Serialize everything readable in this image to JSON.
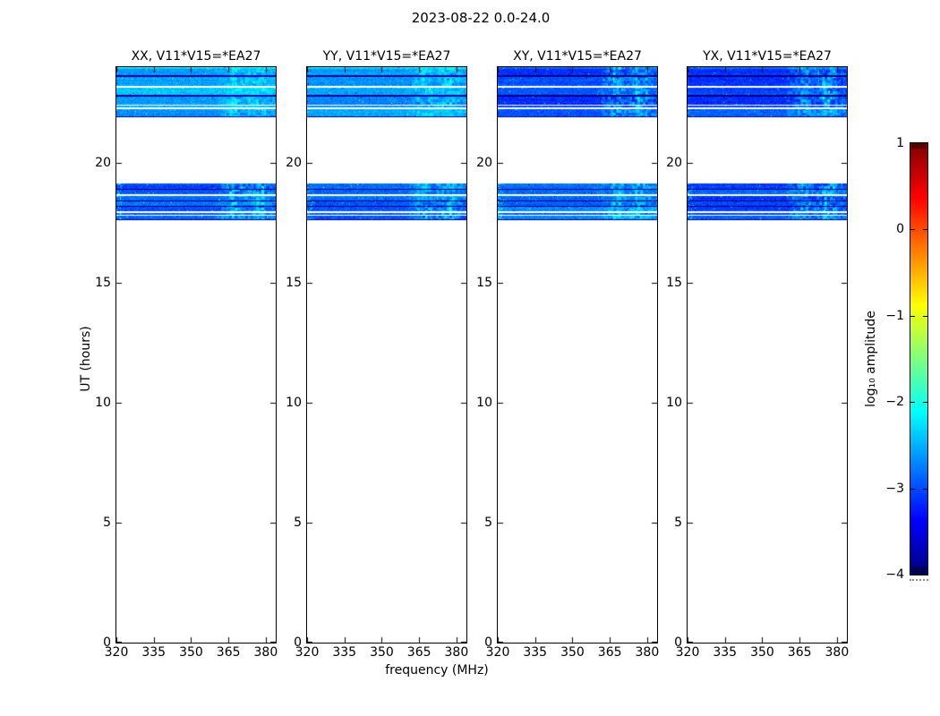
{
  "figure": {
    "title": "2023-08-22 0.0-24.0"
  },
  "axes": {
    "xlabel": "frequency (MHz)",
    "ylabel": "UT (hours)"
  },
  "chart_data": {
    "type": "heatmap",
    "title": "2023-08-22 0.0-24.0",
    "xlabel": "frequency (MHz)",
    "ylabel": "UT (hours)",
    "xlim": [
      320,
      384
    ],
    "ylim": [
      0,
      24
    ],
    "xticks": [
      320,
      335,
      350,
      365,
      380
    ],
    "yticks": [
      0,
      5,
      10,
      15,
      20
    ],
    "grid": false,
    "panels": [
      {
        "pol": "XX",
        "title": "XX, V11*V15=*EA27",
        "levels": [
          -2.55,
          -2.95
        ],
        "seed": 101
      },
      {
        "pol": "YY",
        "title": "YY, V11*V15=*EA27",
        "levels": [
          -2.6,
          -2.95
        ],
        "seed": 202
      },
      {
        "pol": "XY",
        "title": "XY, V11*V15=*EA27",
        "levels": [
          -3.0,
          -2.8
        ],
        "seed": 303
      },
      {
        "pol": "YX",
        "title": "YX, V11*V15=*EA27",
        "levels": [
          -3.02,
          -3.0
        ],
        "seed": 404
      }
    ],
    "bands": [
      {
        "name": "scan-late",
        "ut_range": [
          21.9,
          24.0
        ],
        "pattern": [
          {
            "h": 9,
            "t": "d"
          },
          {
            "h": 2,
            "t": "k"
          },
          {
            "h": 10,
            "t": "d"
          },
          {
            "h": 2,
            "t": "w"
          },
          {
            "h": 8,
            "t": "d"
          },
          {
            "h": 2,
            "t": "k"
          },
          {
            "h": 9,
            "t": "d"
          },
          {
            "h": 1,
            "t": "w"
          },
          {
            "h": 2,
            "t": "d"
          },
          {
            "h": 2,
            "t": "w"
          },
          {
            "h": 8,
            "t": "d"
          },
          {
            "h": 1,
            "t": "k"
          }
        ]
      },
      {
        "name": "scan-mid",
        "ut_range": [
          17.65,
          19.15
        ],
        "pattern": [
          {
            "h": 6,
            "t": "d"
          },
          {
            "h": 1,
            "t": "k"
          },
          {
            "h": 5,
            "t": "d"
          },
          {
            "h": 2,
            "t": "w"
          },
          {
            "h": 5,
            "t": "d"
          },
          {
            "h": 1,
            "t": "k"
          },
          {
            "h": 5,
            "t": "d"
          },
          {
            "h": 1,
            "t": "k"
          },
          {
            "h": 5,
            "t": "d"
          },
          {
            "h": 2,
            "t": "w"
          },
          {
            "h": 2,
            "t": "d"
          },
          {
            "h": 1,
            "t": "w"
          },
          {
            "h": 4,
            "t": "d"
          },
          {
            "h": 1,
            "t": "k"
          }
        ]
      }
    ],
    "bright_rfi_region": {
      "freq_range": [
        357,
        384
      ],
      "peak_freqs": [
        367.5,
        377.0
      ],
      "target_level": -1.95
    },
    "colorbar": {
      "label": "log₁₀ amplitude",
      "ticks": [
        1,
        0,
        -1,
        -2,
        -3,
        -4
      ],
      "vmin": -4,
      "vmax": 1,
      "colormap": "jet"
    }
  }
}
